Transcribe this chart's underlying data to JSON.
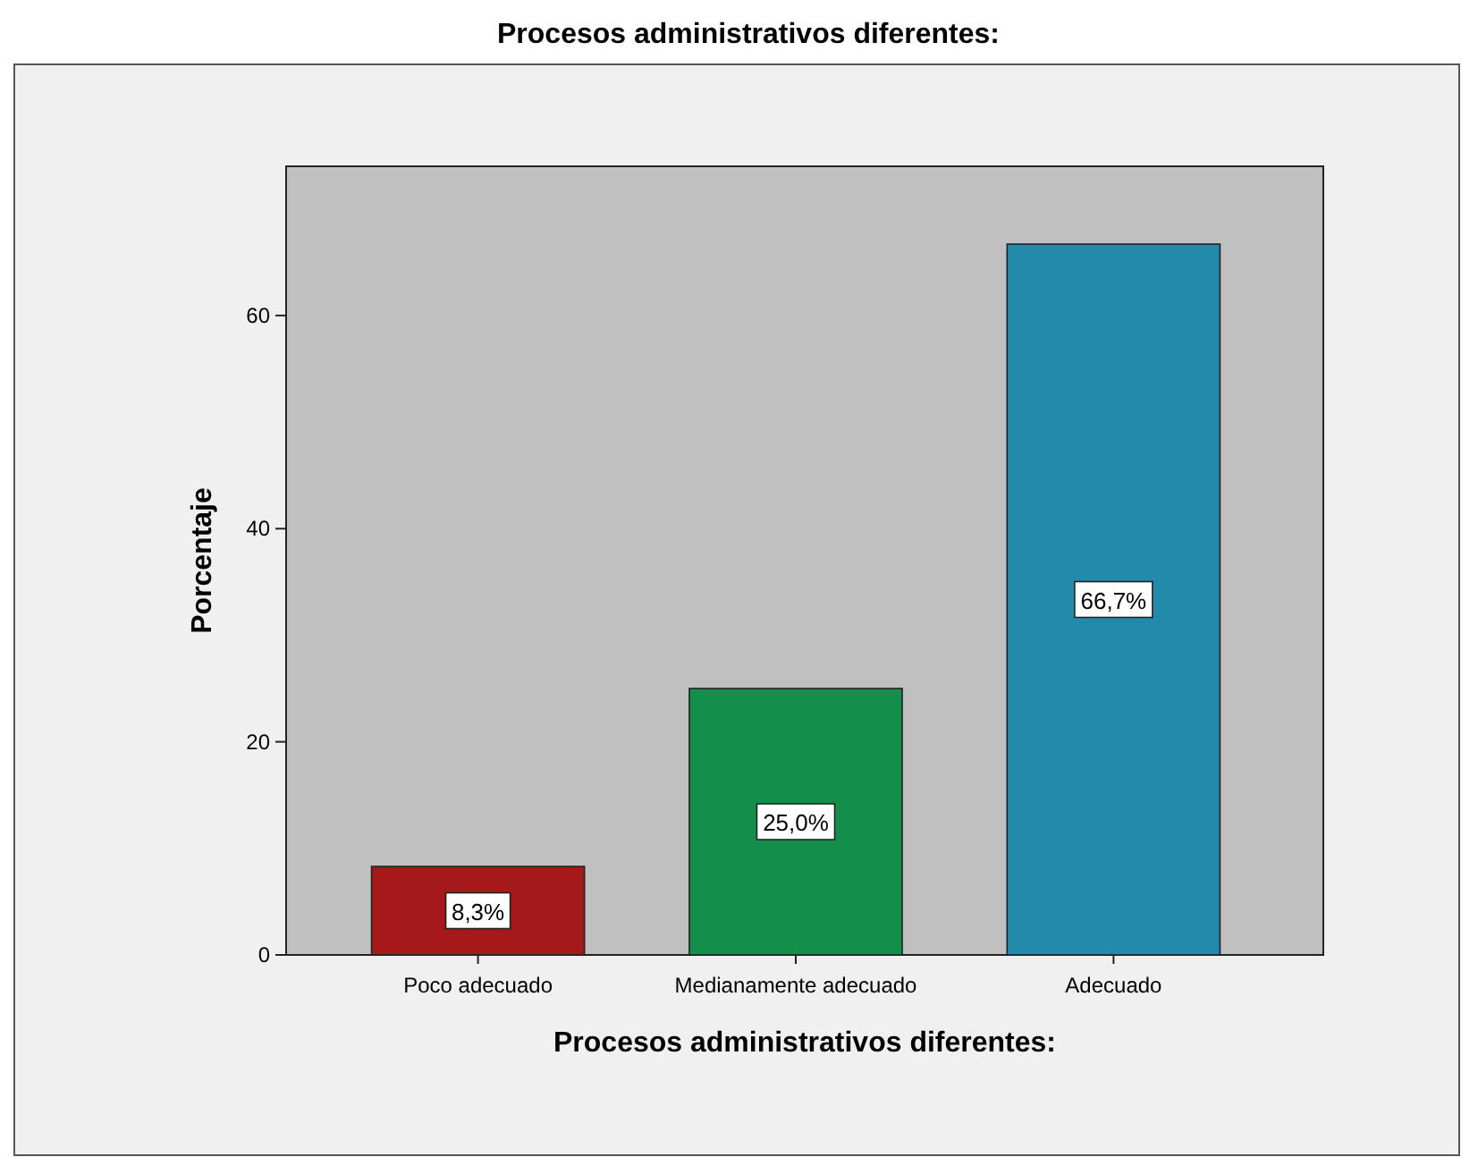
{
  "chart_data": {
    "type": "bar",
    "title": "Procesos administrativos diferentes:",
    "xlabel": "Procesos administrativos diferentes:",
    "ylabel": "Porcentaje",
    "categories": [
      "Poco adecuado",
      "Medianamente adecuado",
      "Adecuado"
    ],
    "values": [
      8.3,
      25.0,
      66.7
    ],
    "colors": [
      "#a6191b",
      "#138f4b",
      "#238aac"
    ],
    "value_labels": [
      "8,3%",
      "25,0%",
      "66,7%"
    ],
    "ylim": [
      0,
      74
    ],
    "yticks": [
      0,
      20,
      40,
      60
    ],
    "grid": false
  }
}
